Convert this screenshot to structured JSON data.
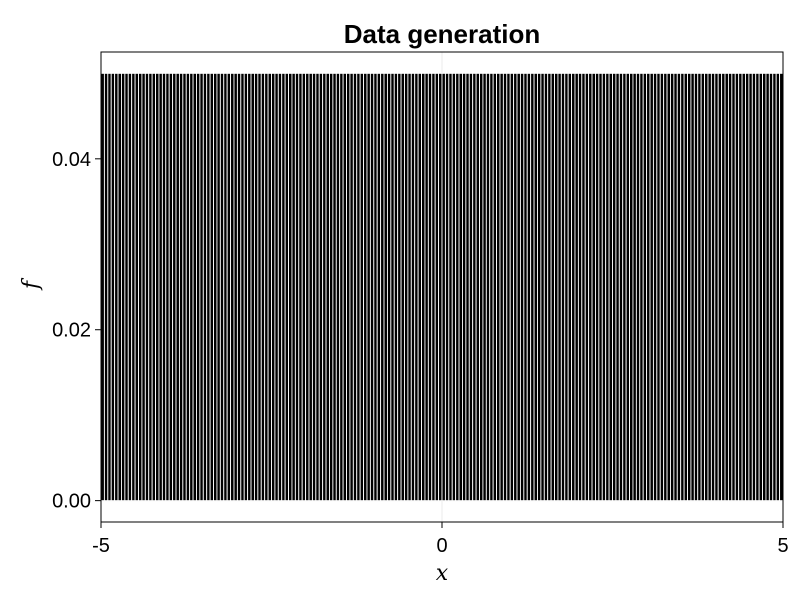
{
  "chart_data": {
    "type": "bar",
    "title": "Data generation",
    "xlabel": "x",
    "ylabel": "f",
    "xlim": [
      -5,
      5
    ],
    "ylim": [
      -0.0025,
      0.0525
    ],
    "x_ticks": [
      -5,
      0,
      5
    ],
    "x_tick_labels": [
      "-5",
      "0",
      "5"
    ],
    "y_ticks": [
      0,
      0.02,
      0.04
    ],
    "y_tick_labels": [
      "0.00",
      "0.02",
      "0.04"
    ],
    "grid": true,
    "legend": "none",
    "bins": {
      "start": -5,
      "end": 5,
      "count": 200,
      "value": 0.05
    },
    "colors": {
      "bar_fill": "#000000",
      "bar_edge": "#ffffff",
      "grid": "#ebebeb",
      "frame": "#000000"
    }
  }
}
